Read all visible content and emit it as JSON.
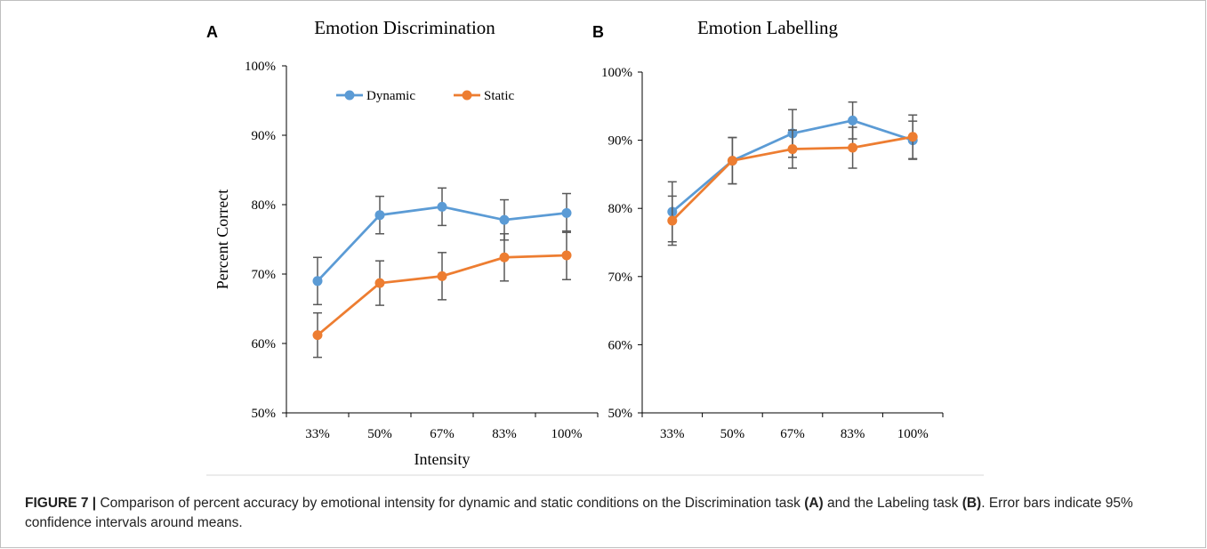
{
  "chart_data": [
    {
      "panel_letter": "A",
      "type": "line",
      "title": "Emotion Discrimination",
      "xlabel": "Intensity",
      "ylabel": "Percent Correct",
      "categories": [
        "33%",
        "50%",
        "67%",
        "83%",
        "100%"
      ],
      "yticks": [
        "50%",
        "60%",
        "70%",
        "80%",
        "90%",
        "100%"
      ],
      "ylim": [
        50,
        100
      ],
      "legend": "top-left",
      "grid": false,
      "series": [
        {
          "name": "Dynamic",
          "color": "#5b9bd5",
          "values": [
            69.0,
            78.5,
            79.7,
            77.8,
            78.8
          ],
          "error": [
            3.4,
            2.7,
            2.7,
            2.9,
            2.8
          ]
        },
        {
          "name": "Static",
          "color": "#ed7d31",
          "values": [
            61.2,
            68.7,
            69.7,
            72.4,
            72.7
          ],
          "error": [
            3.2,
            3.2,
            3.4,
            3.4,
            3.5
          ]
        }
      ]
    },
    {
      "panel_letter": "B",
      "type": "line",
      "title": "Emotion Labelling",
      "xlabel": "",
      "ylabel": "",
      "categories": [
        "33%",
        "50%",
        "67%",
        "83%",
        "100%"
      ],
      "yticks": [
        "50%",
        "60%",
        "70%",
        "80%",
        "90%",
        "100%"
      ],
      "ylim": [
        50,
        100
      ],
      "legend": "none",
      "grid": false,
      "series": [
        {
          "name": "Dynamic",
          "color": "#5b9bd5",
          "values": [
            79.5,
            87.0,
            91.0,
            92.9,
            90.0
          ],
          "error": [
            4.4,
            3.4,
            3.5,
            2.7,
            2.8
          ]
        },
        {
          "name": "Static",
          "color": "#ed7d31",
          "values": [
            78.2,
            87.0,
            88.7,
            88.9,
            90.5
          ],
          "error": [
            3.6,
            3.4,
            2.8,
            3.0,
            3.2
          ]
        }
      ]
    }
  ],
  "caption": {
    "label": "FIGURE 7 |",
    "text_1": " Comparison of percent accuracy by emotional intensity for dynamic and static conditions on the Discrimination task ",
    "ref_a": "(A)",
    "text_2": " and the Labeling task ",
    "ref_b": "(B)",
    "text_3": ". Error bars indicate 95% confidence intervals around means."
  }
}
